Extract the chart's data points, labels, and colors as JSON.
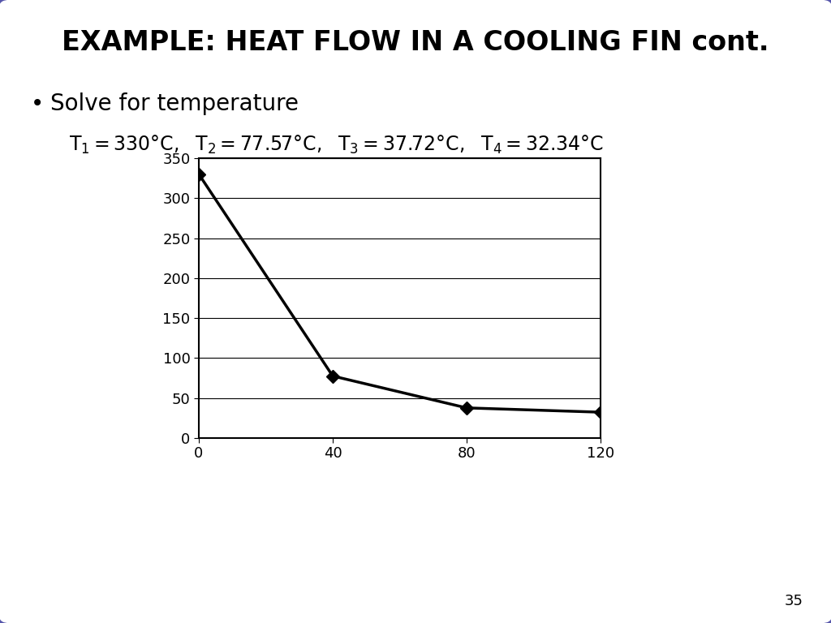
{
  "title": "EXAMPLE: HEAT FLOW IN A COOLING FIN cont.",
  "title_fontsize": 24,
  "title_fontweight": "bold",
  "background_color": "#ffffff",
  "border_color": "#5555aa",
  "bullet_text": "Solve for temperature",
  "bullet_fontsize": 20,
  "equation_fontsize": 17,
  "x_data": [
    0,
    40,
    80,
    120
  ],
  "y_data": [
    330,
    77.57,
    37.72,
    32.34
  ],
  "plot_xlim": [
    0,
    120
  ],
  "plot_ylim": [
    0,
    350
  ],
  "x_ticks": [
    0,
    40,
    80,
    120
  ],
  "y_ticks": [
    0,
    50,
    100,
    150,
    200,
    250,
    300,
    350
  ],
  "tick_fontsize": 13,
  "line_color": "#000000",
  "marker_style": "D",
  "marker_size": 8,
  "marker_color": "#000000",
  "page_number": "35"
}
